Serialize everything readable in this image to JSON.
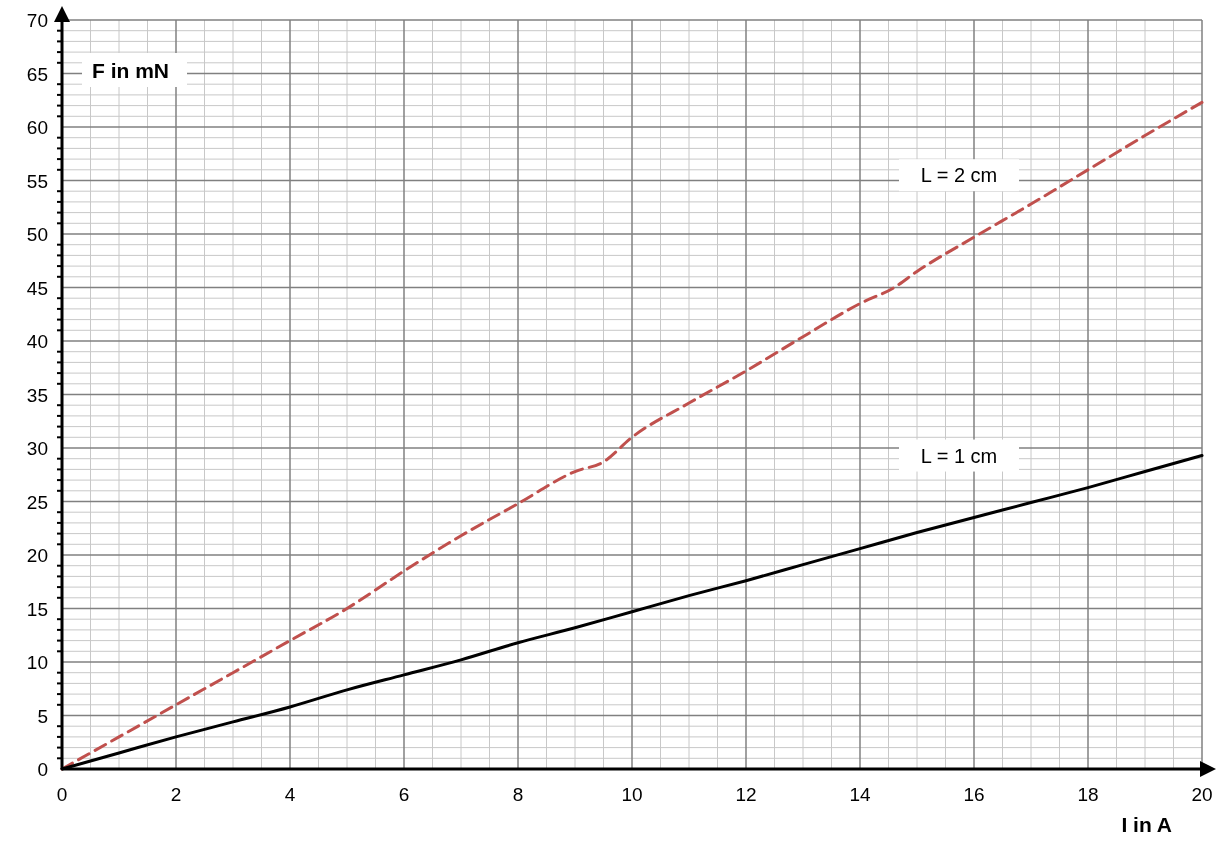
{
  "chart_data": {
    "type": "line",
    "xlabel": "I in A",
    "ylabel": "F in mN",
    "xlim": [
      0,
      20
    ],
    "xticks": [
      0,
      2,
      4,
      6,
      8,
      10,
      12,
      14,
      16,
      18,
      20
    ],
    "ylim": [
      0,
      70
    ],
    "yticks": [
      0,
      5,
      10,
      15,
      20,
      25,
      30,
      35,
      40,
      45,
      50,
      55,
      60,
      65,
      70
    ],
    "grid": true,
    "marker": "none",
    "series": [
      {
        "name": "L = 2 cm",
        "color": "#c0504d",
        "line_style": "dashed",
        "x": [
          0,
          1,
          2,
          3,
          4,
          5,
          6,
          7,
          8,
          9,
          9.5,
          10,
          11,
          12,
          13,
          14,
          14.6,
          15,
          16,
          17,
          18,
          19,
          20
        ],
        "values": [
          0,
          3,
          6,
          9,
          12,
          15,
          18.5,
          21.8,
          24.8,
          27.8,
          28.7,
          31,
          34.2,
          37.2,
          40.4,
          43.5,
          45,
          46.5,
          49.7,
          52.8,
          56,
          59.2,
          62.3
        ]
      },
      {
        "name": "L = 1 cm",
        "color": "#000000",
        "line_style": "solid",
        "x": [
          0,
          1,
          2,
          3,
          4,
          5,
          6,
          7,
          8,
          9,
          10,
          11,
          12,
          13,
          14,
          15,
          16,
          17,
          18,
          19,
          20
        ],
        "values": [
          0,
          1.5,
          3,
          4.4,
          5.8,
          7.4,
          8.8,
          10.2,
          11.8,
          13.2,
          14.7,
          16.2,
          17.6,
          19.1,
          20.6,
          22.1,
          23.5,
          24.9,
          26.3,
          27.8,
          29.3
        ]
      }
    ]
  }
}
